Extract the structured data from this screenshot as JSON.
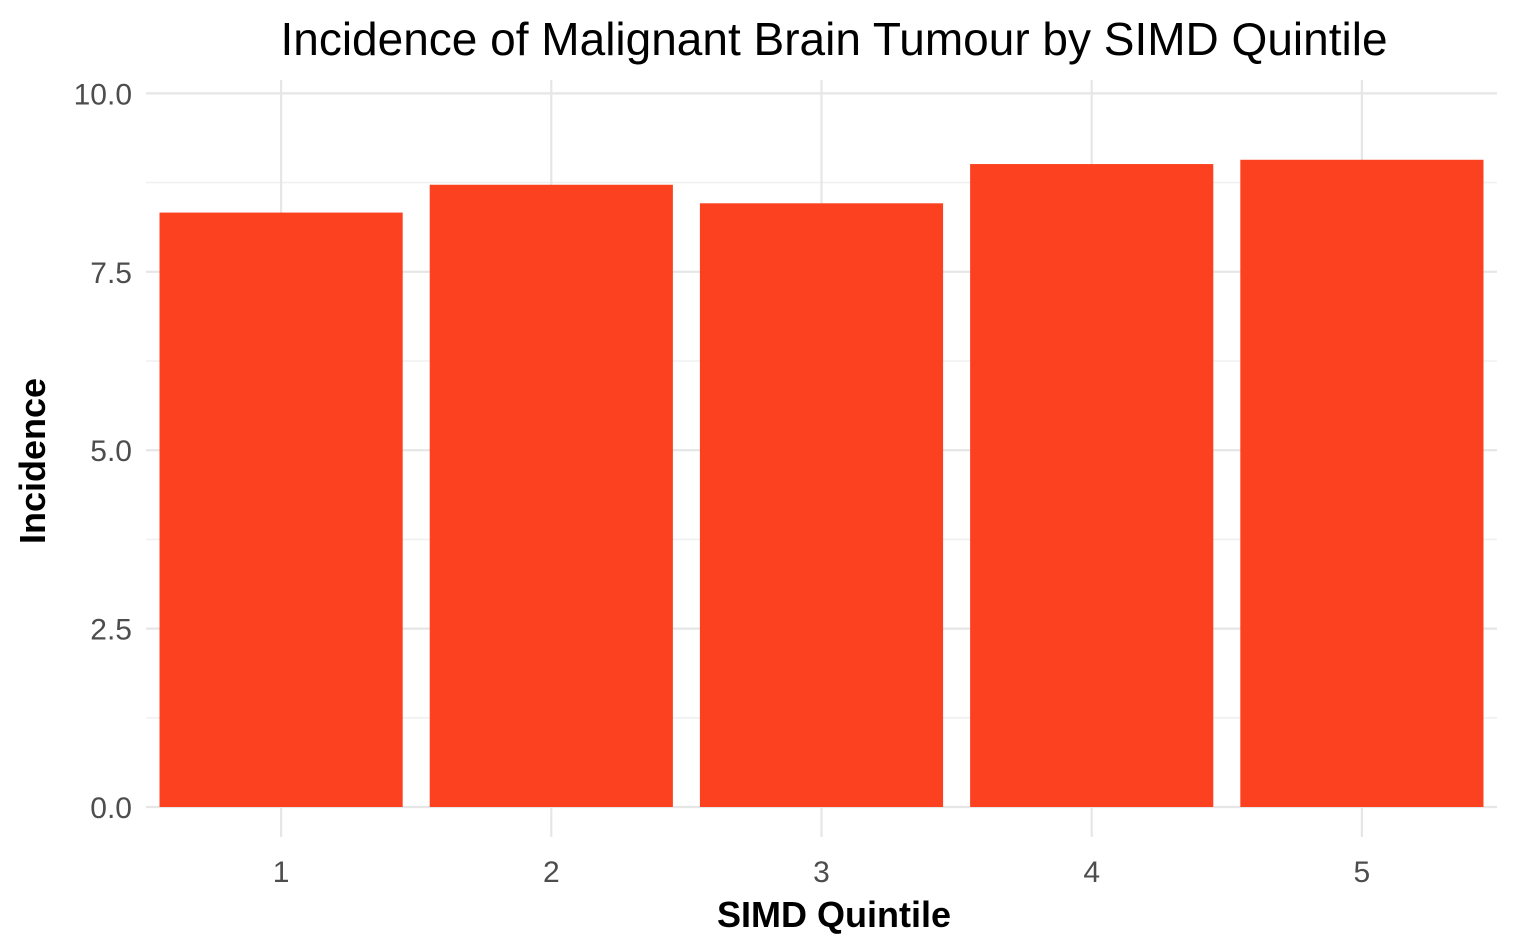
{
  "chart_data": {
    "type": "bar",
    "title": "Incidence of Malignant Brain Tumour by SIMD Quintile",
    "xlabel": "SIMD Quintile",
    "ylabel": "Incidence",
    "categories": [
      "1",
      "2",
      "3",
      "4",
      "5"
    ],
    "values": [
      8.33,
      8.72,
      8.46,
      9.01,
      9.07
    ],
    "ylim": [
      0,
      10.3
    ],
    "yticks": [
      "0.0",
      "2.5",
      "5.0",
      "7.5",
      "10.0"
    ],
    "grid": true,
    "legend": "none",
    "bar_color": "#FC4120"
  }
}
